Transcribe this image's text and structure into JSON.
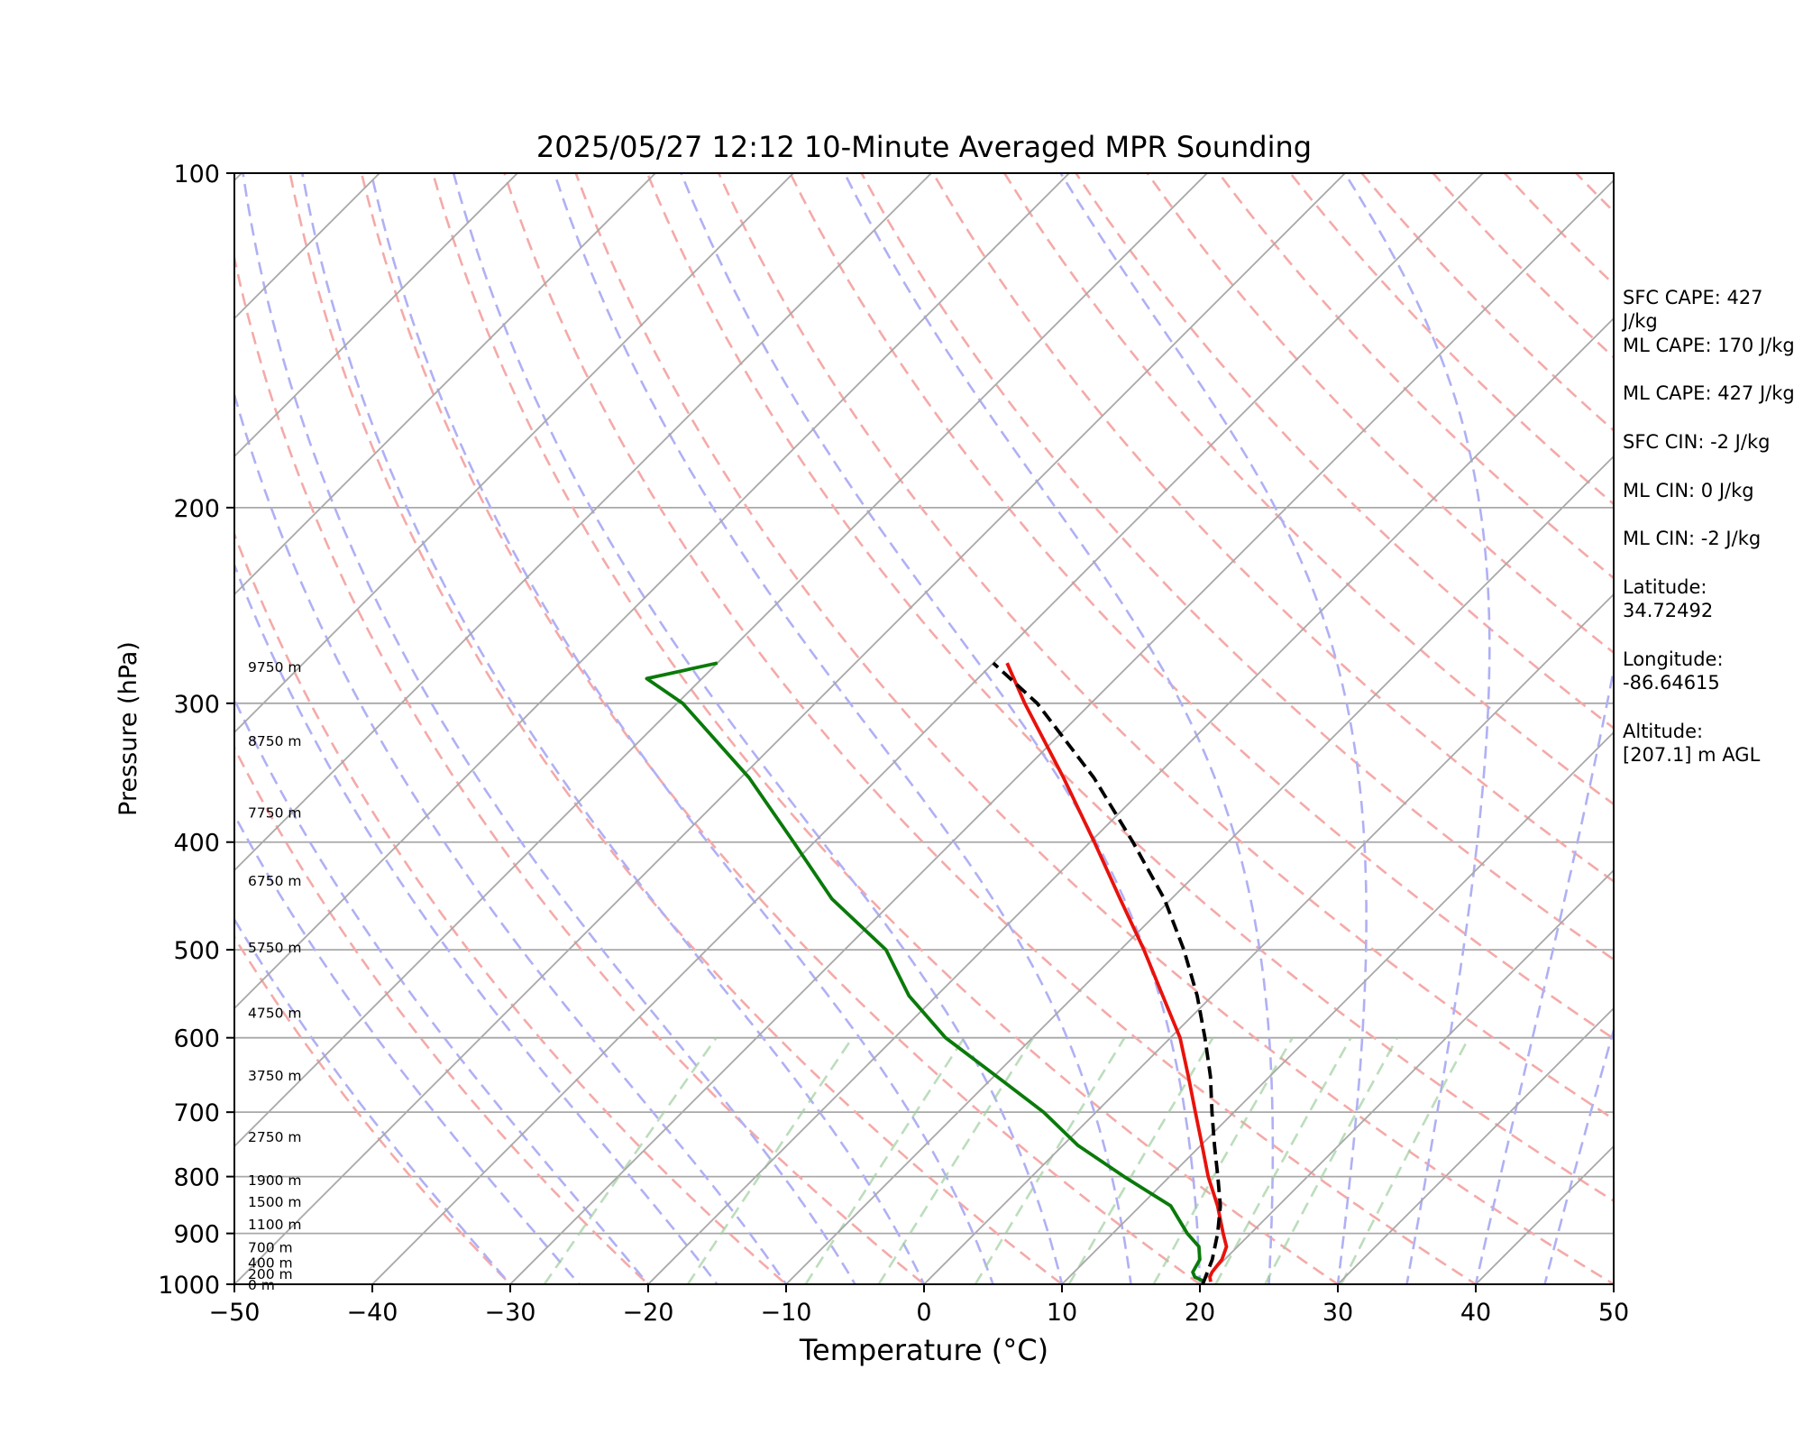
{
  "chart_data": {
    "type": "line",
    "subtype": "skew-T log-P sounding",
    "title": "2025/05/27 12:12 10-Minute Averaged MPR Sounding",
    "xlabel": "Temperature (°C)",
    "ylabel": "Pressure (hPa)",
    "xlim": [
      -50,
      50
    ],
    "ylim": [
      1000,
      100
    ],
    "y_scale": "log",
    "x_ticks": [
      "−50",
      "−40",
      "−30",
      "−20",
      "−10",
      "0",
      "10",
      "20",
      "30",
      "40",
      "50"
    ],
    "y_ticks": [
      "100",
      "200",
      "300",
      "400",
      "500",
      "600",
      "700",
      "800",
      "900",
      "1000"
    ],
    "height_labels": [
      {
        "pressure": 1000,
        "label": "0 m"
      },
      {
        "pressure": 978,
        "label": "200 m"
      },
      {
        "pressure": 955,
        "label": "400 m"
      },
      {
        "pressure": 925,
        "label": "700 m"
      },
      {
        "pressure": 882,
        "label": "1100 m"
      },
      {
        "pressure": 842,
        "label": "1500 m"
      },
      {
        "pressure": 805,
        "label": "1900 m"
      },
      {
        "pressure": 736,
        "label": "2750 m"
      },
      {
        "pressure": 648,
        "label": "3750 m"
      },
      {
        "pressure": 569,
        "label": "4750 m"
      },
      {
        "pressure": 497,
        "label": "5750 m"
      },
      {
        "pressure": 433,
        "label": "6750 m"
      },
      {
        "pressure": 376,
        "label": "7750 m"
      },
      {
        "pressure": 324,
        "label": "8750 m"
      },
      {
        "pressure": 278,
        "label": "9750 m"
      }
    ],
    "series": [
      {
        "role": "temperature",
        "color": "#e8120c",
        "points": [
          {
            "p": 995,
            "t": 20.6
          },
          {
            "p": 985,
            "t": 20.2
          },
          {
            "p": 975,
            "t": 20.0
          },
          {
            "p": 950,
            "t": 19.8
          },
          {
            "p": 925,
            "t": 19.2
          },
          {
            "p": 900,
            "t": 18.0
          },
          {
            "p": 850,
            "t": 15.6
          },
          {
            "p": 800,
            "t": 12.8
          },
          {
            "p": 750,
            "t": 10.1
          },
          {
            "p": 700,
            "t": 7.2
          },
          {
            "p": 650,
            "t": 4.1
          },
          {
            "p": 600,
            "t": 0.7
          },
          {
            "p": 550,
            "t": -3.6
          },
          {
            "p": 500,
            "t": -8.3
          },
          {
            "p": 450,
            "t": -13.7
          },
          {
            "p": 400,
            "t": -19.7
          },
          {
            "p": 350,
            "t": -26.6
          },
          {
            "p": 300,
            "t": -34.8
          },
          {
            "p": 276,
            "t": -39.0
          }
        ]
      },
      {
        "role": "dewpoint",
        "color": "#0a7a0a",
        "points": [
          {
            "p": 995,
            "t": 20.2
          },
          {
            "p": 985,
            "t": 19.1
          },
          {
            "p": 975,
            "t": 18.6
          },
          {
            "p": 950,
            "t": 18.2
          },
          {
            "p": 925,
            "t": 17.2
          },
          {
            "p": 900,
            "t": 15.4
          },
          {
            "p": 850,
            "t": 12.2
          },
          {
            "p": 800,
            "t": 6.7
          },
          {
            "p": 750,
            "t": 1.1
          },
          {
            "p": 700,
            "t": -3.8
          },
          {
            "p": 650,
            "t": -9.8
          },
          {
            "p": 600,
            "t": -16.3
          },
          {
            "p": 550,
            "t": -22.0
          },
          {
            "p": 500,
            "t": -27.0
          },
          {
            "p": 450,
            "t": -34.6
          },
          {
            "p": 400,
            "t": -41.5
          },
          {
            "p": 350,
            "t": -49.4
          },
          {
            "p": 300,
            "t": -59.6
          },
          {
            "p": 285,
            "t": -64.0
          },
          {
            "p": 276,
            "t": -60.0
          }
        ]
      },
      {
        "role": "parcel",
        "color": "#000000",
        "dashed": true,
        "points": [
          {
            "p": 1000,
            "t": 20.2
          },
          {
            "p": 950,
            "t": 19.1
          },
          {
            "p": 900,
            "t": 17.6
          },
          {
            "p": 850,
            "t": 15.8
          },
          {
            "p": 800,
            "t": 13.5
          },
          {
            "p": 750,
            "t": 11.0
          },
          {
            "p": 700,
            "t": 8.4
          },
          {
            "p": 650,
            "t": 5.7
          },
          {
            "p": 600,
            "t": 2.5
          },
          {
            "p": 550,
            "t": -1.1
          },
          {
            "p": 500,
            "t": -5.4
          },
          {
            "p": 450,
            "t": -10.5
          },
          {
            "p": 400,
            "t": -16.9
          },
          {
            "p": 350,
            "t": -24.4
          },
          {
            "p": 300,
            "t": -33.9
          },
          {
            "p": 276,
            "t": -40.0
          }
        ]
      }
    ],
    "reference_lines": {
      "isotherm_color": "#a8a8a8",
      "dry_adiabat_color": "#f4aaa8",
      "moist_adiabat_color": "#b0b0f4",
      "mixing_ratio_color": "#9fcf9f",
      "dry_adiabats_theta_c": [
        -30,
        -20,
        -10,
        0,
        10,
        20,
        30,
        40,
        50,
        60,
        70,
        80,
        90,
        100,
        110,
        120,
        130,
        140,
        150,
        160,
        170,
        180,
        190,
        200
      ],
      "moist_adiabats_t1000_c": [
        -30,
        -25,
        -20,
        -15,
        -10,
        -5,
        0,
        5,
        10,
        15,
        20,
        25,
        30,
        35,
        40,
        45
      ],
      "mixing_ratios_gkg": [
        0.4,
        1,
        2,
        3,
        5,
        8,
        12,
        16,
        20,
        28
      ]
    }
  },
  "annotations": {
    "sfc_cape": "SFC CAPE: 427 J/kg",
    "ml_cape_1": "ML CAPE: 170 J/kg",
    "ml_cape_2": "ML CAPE: 427 J/kg",
    "sfc_cin": "SFC CIN: -2 J/kg",
    "ml_cin_1": "ML CIN: 0 J/kg",
    "ml_cin_2": "ML CIN: -2 J/kg",
    "latitude": "Latitude:\n34.72492",
    "longitude": "Longitude:\n-86.64615",
    "altitude": "Altitude:\n[207.1] m AGL"
  }
}
